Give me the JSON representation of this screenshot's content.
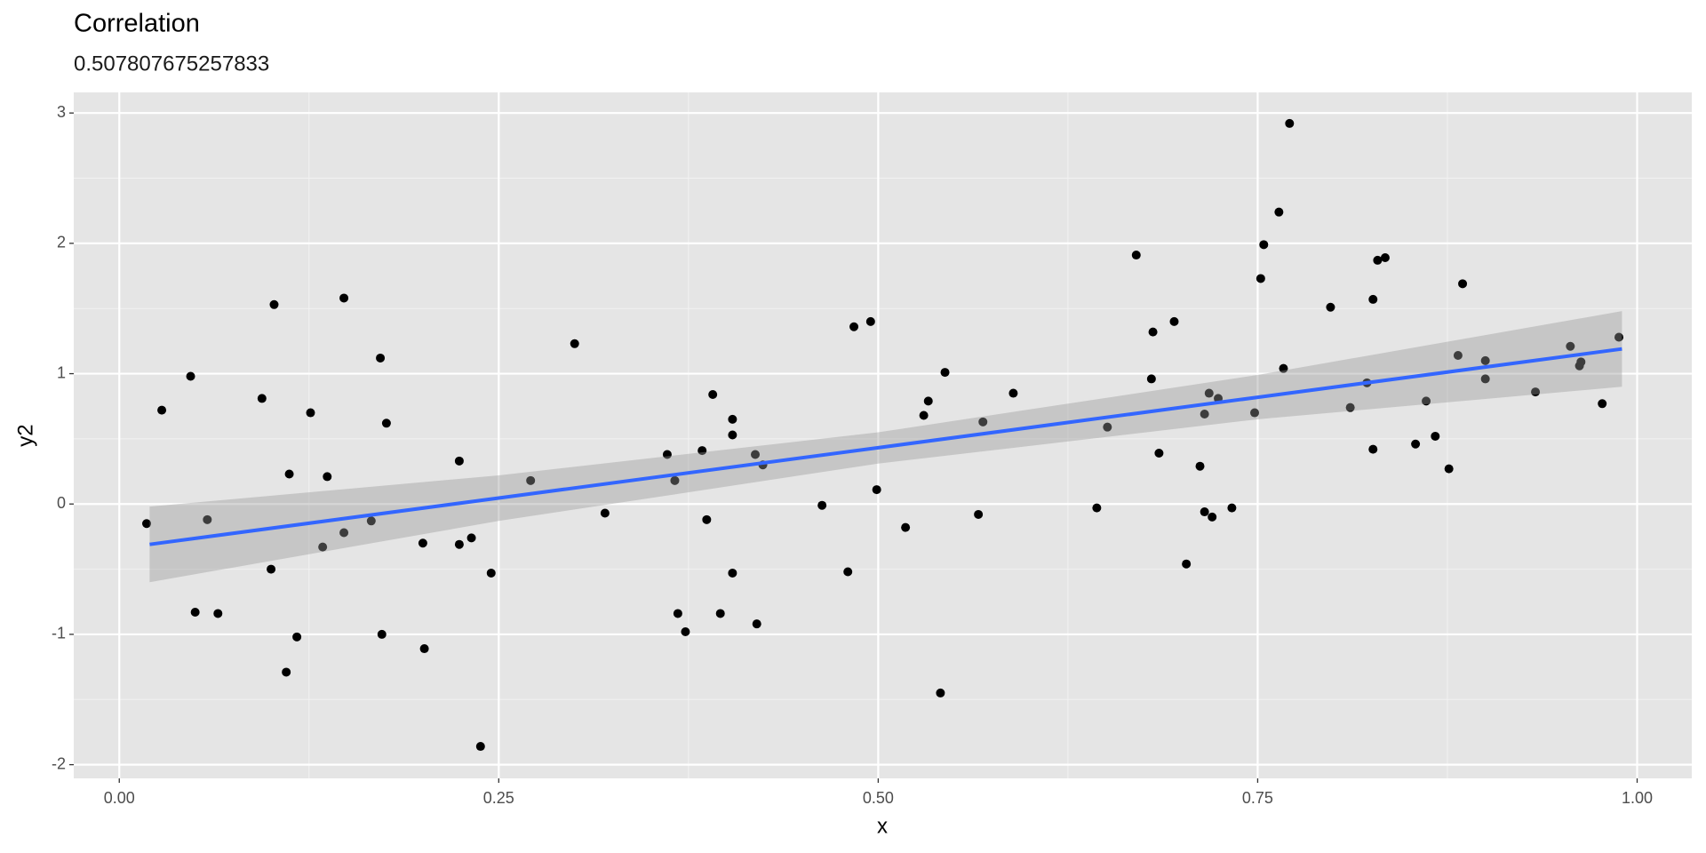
{
  "chart_data": {
    "type": "scatter",
    "title": "Correlation",
    "subtitle": "0.507807675257833",
    "x_label": "x",
    "y_label": "y2",
    "x": [
      0.018,
      0.028,
      0.047,
      0.05,
      0.058,
      0.065,
      0.094,
      0.1,
      0.102,
      0.11,
      0.112,
      0.117,
      0.126,
      0.134,
      0.137,
      0.148,
      0.148,
      0.166,
      0.172,
      0.173,
      0.176,
      0.2,
      0.201,
      0.224,
      0.224,
      0.232,
      0.238,
      0.245,
      0.271,
      0.3,
      0.32,
      0.361,
      0.366,
      0.368,
      0.373,
      0.384,
      0.387,
      0.391,
      0.396,
      0.404,
      0.404,
      0.404,
      0.419,
      0.42,
      0.424,
      0.463,
      0.48,
      0.484,
      0.495,
      0.499,
      0.518,
      0.53,
      0.533,
      0.541,
      0.544,
      0.566,
      0.569,
      0.589,
      0.644,
      0.651,
      0.67,
      0.68,
      0.681,
      0.685,
      0.695,
      0.703,
      0.712,
      0.715,
      0.715,
      0.718,
      0.72,
      0.724,
      0.733,
      0.748,
      0.752,
      0.754,
      0.764,
      0.767,
      0.771,
      0.798,
      0.811,
      0.822,
      0.826,
      0.826,
      0.829,
      0.834,
      0.854,
      0.861,
      0.867,
      0.876,
      0.882,
      0.885,
      0.9,
      0.9,
      0.933,
      0.956,
      0.962,
      0.963,
      0.977,
      0.988
    ],
    "values": [
      -0.15,
      0.72,
      0.98,
      -0.83,
      -0.12,
      -0.84,
      0.81,
      -0.5,
      1.53,
      -1.29,
      0.23,
      -1.02,
      0.7,
      -0.33,
      0.21,
      -0.22,
      1.58,
      -0.13,
      1.12,
      -1.0,
      0.62,
      -0.3,
      -1.11,
      0.33,
      -0.31,
      -0.26,
      -1.86,
      -0.53,
      0.18,
      1.23,
      -0.07,
      0.38,
      0.18,
      -0.84,
      -0.98,
      0.41,
      -0.12,
      0.84,
      -0.84,
      0.65,
      0.53,
      -0.53,
      0.38,
      -0.92,
      0.3,
      -0.01,
      -0.52,
      1.36,
      1.4,
      0.11,
      -0.18,
      0.68,
      0.79,
      -1.45,
      1.01,
      -0.08,
      0.63,
      0.85,
      -0.03,
      0.59,
      1.91,
      0.96,
      1.32,
      0.39,
      1.4,
      -0.46,
      0.29,
      -0.06,
      0.69,
      0.85,
      -0.1,
      0.81,
      -0.03,
      0.7,
      1.73,
      1.99,
      2.24,
      1.04,
      2.92,
      1.51,
      0.74,
      0.93,
      1.57,
      0.42,
      1.87,
      1.89,
      0.46,
      0.79,
      0.52,
      0.27,
      1.14,
      1.69,
      1.1,
      0.96,
      0.86,
      1.21,
      1.06,
      1.09,
      0.77,
      1.28
    ],
    "color": "#000000",
    "fit": {
      "x": [
        0.02,
        0.25,
        0.5,
        0.75,
        0.99
      ],
      "values": [
        -0.31,
        0.046,
        0.432,
        0.819,
        1.19
      ],
      "upper": [
        -0.02,
        0.22,
        0.55,
        0.99,
        1.48
      ],
      "lower": [
        -0.6,
        -0.13,
        0.31,
        0.65,
        0.9
      ],
      "color": "#3366ff",
      "band_color": "#999999"
    },
    "xlim": [
      -0.03,
      1.036
    ],
    "ylim": [
      -2.105,
      3.158
    ],
    "xticks": [
      {
        "value": 0,
        "label": "0.00"
      },
      {
        "value": 0.25,
        "label": "0.25"
      },
      {
        "value": 0.5,
        "label": "0.50"
      },
      {
        "value": 0.75,
        "label": "0.75"
      },
      {
        "value": 1,
        "label": "1.00"
      }
    ],
    "yticks": [
      -2,
      -1,
      0,
      1,
      2,
      3
    ],
    "grid": true
  }
}
